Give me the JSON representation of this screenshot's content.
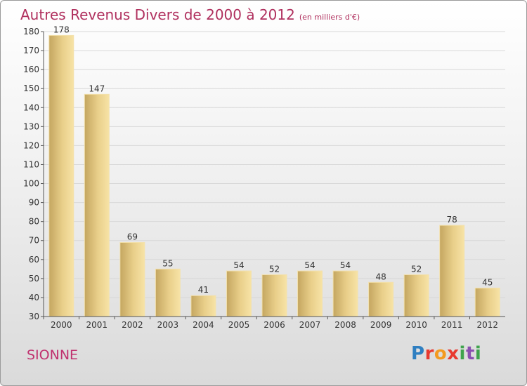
{
  "header": {
    "title": "Autres Revenus Divers de 2000 à 2012",
    "subtitle": "(en milliers d'€)"
  },
  "footer": {
    "place": "SIONNE",
    "logo_text": "Proxiti"
  },
  "colors": {
    "title": "#b0305e",
    "bar_light": "#f5dc9a",
    "bar_dark": "#c4a660",
    "grid": "#d8d8d8",
    "axis_text": "#333333"
  },
  "chart_data": {
    "type": "bar",
    "categories": [
      "2000",
      "2001",
      "2002",
      "2003",
      "2004",
      "2005",
      "2006",
      "2007",
      "2008",
      "2009",
      "2010",
      "2011",
      "2012"
    ],
    "values": [
      178,
      147,
      69,
      55,
      41,
      54,
      52,
      54,
      54,
      48,
      52,
      78,
      45
    ],
    "ylim": [
      30,
      180
    ],
    "yticks": [
      30,
      40,
      50,
      60,
      70,
      80,
      90,
      100,
      110,
      120,
      130,
      140,
      150,
      160,
      170,
      180
    ],
    "grid": true,
    "xlabel": "",
    "ylabel": ""
  }
}
